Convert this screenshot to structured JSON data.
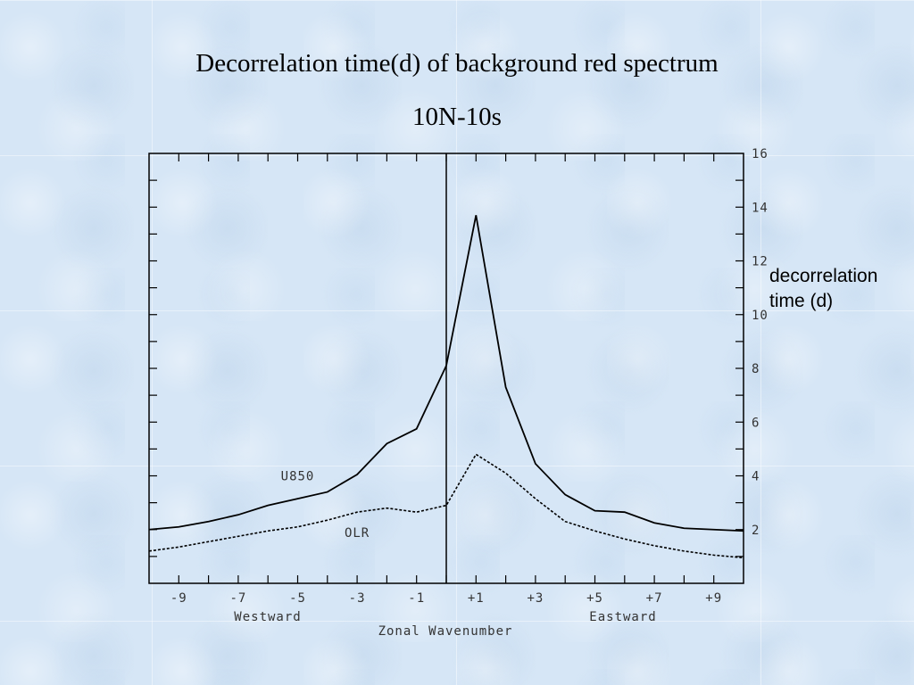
{
  "chart_data": {
    "type": "line",
    "title": "Decorrelation time(d) of background red spectrum",
    "subtitle": "10N-10s",
    "xlabel": "Zonal Wavenumber",
    "xlabel_left": "Westward",
    "xlabel_right": "Eastward",
    "ylabel": "decorrelation time (d)",
    "xlim": [
      -10,
      10
    ],
    "ylim": [
      0,
      16
    ],
    "x_ticks": [
      -9,
      -7,
      -5,
      -3,
      -1,
      1,
      3,
      5,
      7,
      9
    ],
    "x_tick_labels": [
      "-9",
      "-7",
      "-5",
      "-3",
      "-1",
      "+1",
      "+3",
      "+5",
      "+7",
      "+9"
    ],
    "y_ticks": [
      2,
      4,
      6,
      8,
      10,
      12,
      14,
      16
    ],
    "y_tick_labels": [
      "2",
      "4",
      "6",
      "8",
      "10",
      "12",
      "14",
      "16"
    ],
    "x": [
      -10,
      -9,
      -8,
      -7,
      -6,
      -5,
      -4,
      -3,
      -2,
      -1,
      0,
      1,
      2,
      3,
      4,
      5,
      6,
      7,
      8,
      9,
      10
    ],
    "series": [
      {
        "name": "U850",
        "style": "solid",
        "values": [
          2.0,
          2.1,
          2.3,
          2.55,
          2.9,
          3.15,
          3.4,
          4.05,
          5.2,
          5.75,
          8.1,
          13.7,
          7.3,
          4.45,
          3.3,
          2.7,
          2.65,
          2.25,
          2.05,
          2.0,
          1.95
        ]
      },
      {
        "name": "OLR",
        "style": "dashed",
        "values": [
          1.2,
          1.35,
          1.55,
          1.75,
          1.95,
          2.1,
          2.35,
          2.65,
          2.8,
          2.65,
          2.9,
          4.8,
          4.1,
          3.15,
          2.3,
          1.95,
          1.65,
          1.4,
          1.2,
          1.05,
          0.95
        ]
      }
    ],
    "grid": false,
    "legend": "inline labels"
  }
}
